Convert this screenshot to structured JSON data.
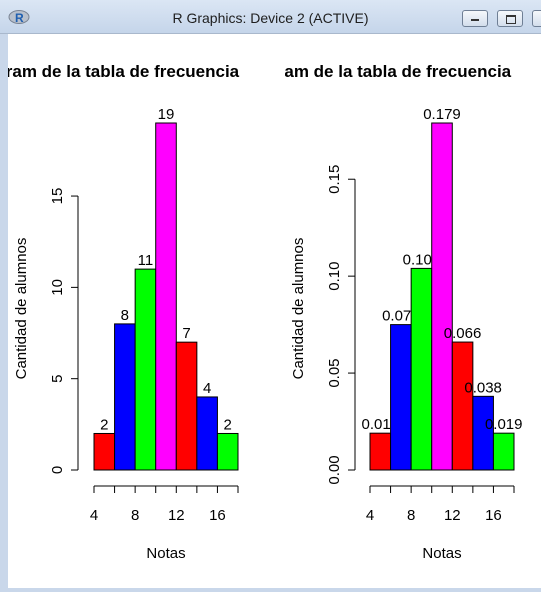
{
  "window": {
    "title": "R Graphics: Device 2 (ACTIVE)",
    "icon": "r-logo-icon",
    "buttons": [
      "minimize-icon",
      "maximize-icon",
      "close-icon"
    ]
  },
  "colors": {
    "bars": [
      "#ff0000",
      "#0000ff",
      "#00ff00",
      "#ff00ff",
      "#ff0000",
      "#0000ff",
      "#00ff00"
    ]
  },
  "chart_data": [
    {
      "type": "bar",
      "title": "Histogram de  la tabla de frecuencia",
      "xlabel": "Notas",
      "ylabel": "Cantidad de alumnos",
      "x_edges": [
        4,
        6,
        8,
        10,
        12,
        14,
        16,
        18
      ],
      "values": [
        2,
        8,
        11,
        19,
        7,
        4,
        2
      ],
      "labels": [
        "2",
        "8",
        "11",
        "19",
        "7",
        "4",
        "2"
      ],
      "xlim": [
        4,
        18
      ],
      "ylim": [
        0,
        19
      ],
      "xticks": [
        4,
        8,
        12,
        16
      ],
      "xtick_labels": [
        "4",
        "8",
        "12",
        "16"
      ],
      "yticks": [
        0,
        5,
        10,
        15
      ],
      "ytick_labels": [
        "0",
        "5",
        "10",
        "15"
      ]
    },
    {
      "type": "bar",
      "title": "Histogram de  la tabla de frecuencia",
      "xlabel": "Notas",
      "ylabel": "Cantidad de alumnos",
      "x_edges": [
        4,
        6,
        8,
        10,
        12,
        14,
        16,
        18
      ],
      "values": [
        0.019,
        0.075,
        0.104,
        0.179,
        0.066,
        0.038,
        0.019
      ],
      "labels": [
        "0.019",
        "0.075",
        "0.104",
        "0.179",
        "0.066",
        "0.038",
        "0.019"
      ],
      "xlim": [
        4,
        18
      ],
      "ylim": [
        0,
        0.179
      ],
      "xticks": [
        4,
        8,
        12,
        16
      ],
      "xtick_labels": [
        "4",
        "8",
        "12",
        "16"
      ],
      "yticks": [
        0,
        0.05,
        0.1,
        0.15
      ],
      "ytick_labels": [
        "0.00",
        "0.05",
        "0.10",
        "0.15"
      ]
    }
  ]
}
